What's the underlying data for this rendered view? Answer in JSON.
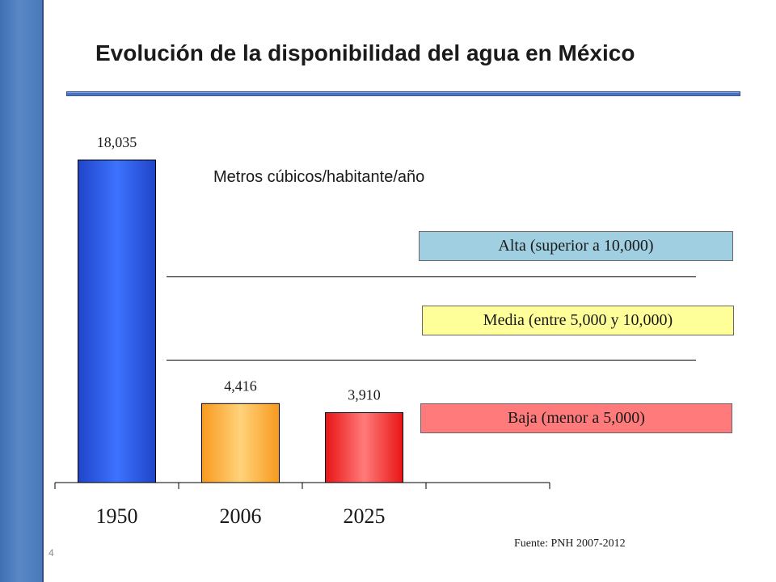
{
  "title": "Evolución de la disponibilidad del agua en México",
  "subtitle": "Metros cúbicos/habitante/año",
  "bands": [
    {
      "label": "Alta (superior a 10,000)",
      "color": "#9fcfe0"
    },
    {
      "label": "Media (entre 5,000 y 10,000)",
      "color": "#ffff99"
    },
    {
      "label": "Baja (menor a 5,000)",
      "color": "#ff7b7b"
    }
  ],
  "source": "Fuente: PNH 2007-2012",
  "slide_number": "4",
  "chart_data": {
    "type": "bar",
    "categories": [
      "1950",
      "2006",
      "2025"
    ],
    "values": [
      18035,
      4416,
      3910
    ],
    "value_labels": [
      "18,035",
      "4,416",
      "3,910"
    ],
    "colors": [
      "#2b5cf0",
      "#ffb030",
      "#ff3030"
    ],
    "thresholds": [
      5000,
      10000
    ],
    "ylim": [
      0,
      20000
    ],
    "grid": false,
    "xlabel": "",
    "ylabel": ""
  }
}
